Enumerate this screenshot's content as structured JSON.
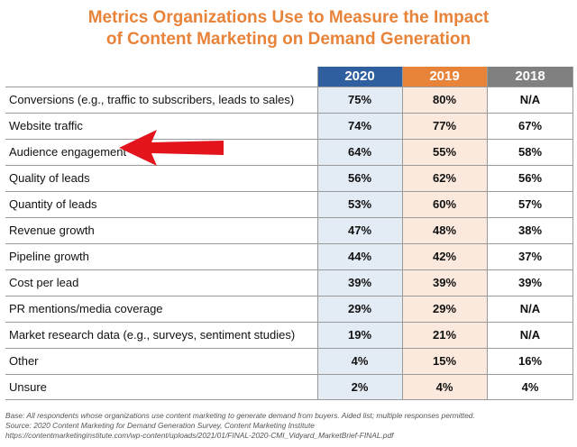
{
  "title": {
    "line1": "Metrics Organizations Use to Measure the Impact",
    "line2": "of Content Marketing on Demand Generation"
  },
  "colors": {
    "col2020": "#2f5f9e",
    "col2019": "#e8833a",
    "col2018": "#808080",
    "title": "#e8833a",
    "arrow": "#e3141b"
  },
  "chart_data": {
    "type": "table",
    "title": "Metrics Organizations Use to Measure the Impact of Content Marketing on Demand Generation",
    "columns": [
      "2020",
      "2019",
      "2018"
    ],
    "rows": [
      {
        "label": "Conversions (e.g., traffic to subscribers, leads to sales)",
        "values": [
          "75%",
          "80%",
          "N/A"
        ]
      },
      {
        "label": "Website traffic",
        "values": [
          "74%",
          "77%",
          "67%"
        ]
      },
      {
        "label": "Audience engagement",
        "values": [
          "64%",
          "55%",
          "58%"
        ],
        "highlighted_by_arrow": true
      },
      {
        "label": "Quality of leads",
        "values": [
          "56%",
          "62%",
          "56%"
        ]
      },
      {
        "label": "Quantity of leads",
        "values": [
          "53%",
          "60%",
          "57%"
        ]
      },
      {
        "label": "Revenue growth",
        "values": [
          "47%",
          "48%",
          "38%"
        ]
      },
      {
        "label": "Pipeline growth",
        "values": [
          "44%",
          "42%",
          "37%"
        ]
      },
      {
        "label": "Cost per lead",
        "values": [
          "39%",
          "39%",
          "39%"
        ]
      },
      {
        "label": "PR mentions/media coverage",
        "values": [
          "29%",
          "29%",
          "N/A"
        ]
      },
      {
        "label": "Market research data (e.g., surveys, sentiment studies)",
        "values": [
          "19%",
          "21%",
          "N/A"
        ]
      },
      {
        "label": "Other",
        "values": [
          "4%",
          "15%",
          "16%"
        ]
      },
      {
        "label": "Unsure",
        "values": [
          "2%",
          "4%",
          "4%"
        ]
      }
    ]
  },
  "footer": {
    "base": "Base: All respondents whose organizations use content marketing to generate demand from buyers. Aided list; multiple responses permitted.",
    "source": "Source: 2020 Content Marketing for Demand Generation Survey, Content Marketing Institute",
    "url": "https://contentmarketinginstitute.com/wp-content/uploads/2021/01/FINAL-2020-CMI_Vidyard_MarketBrief-FINAL.pdf"
  }
}
